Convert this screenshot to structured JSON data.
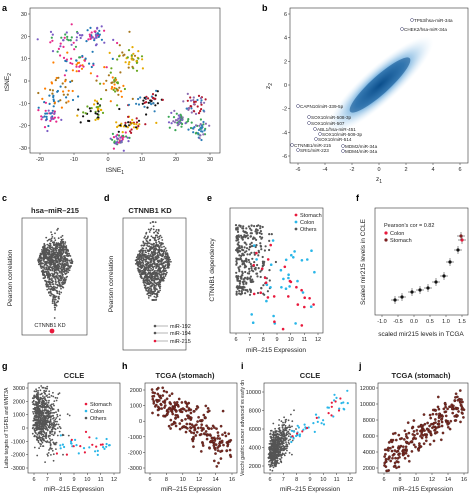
{
  "panels": {
    "a": {
      "label": "a",
      "xlabel": "tSNE",
      "xlabel_sub": "1",
      "ylabel": "tSNE",
      "ylabel_sub": "2",
      "xticks": [
        "-20",
        "-10",
        "0",
        "10",
        "20",
        "30"
      ],
      "yticks": [
        "-30",
        "-20",
        "-10",
        "0",
        "10",
        "20",
        "30"
      ]
    },
    "b": {
      "label": "b",
      "xlabel": "z",
      "xlabel_sub": "1",
      "ylabel": "z",
      "ylabel_sub": "2",
      "xticks": [
        "-6",
        "-4",
        "-2",
        "0",
        "2",
        "4",
        "6"
      ],
      "yticks": [
        "-6",
        "-4",
        "-2",
        "0",
        "2",
        "4",
        "6"
      ],
      "annotations": [
        "TP53/hsa-miR-34a",
        "CHEK2/hsa-miR-34a",
        "CAPN10/miR-339-5p",
        "SOX10/miR-508-3p",
        "SOX10/miR-507",
        "ABL1/hsa-miR-451",
        "SOX10/miR-509-3p",
        "SOX10/miR-514",
        "CTNNB1/miR-215",
        "MDM2/miR-34a",
        "SRI1/miR-223",
        "MDM4/miR-34a"
      ]
    },
    "c": {
      "label": "c",
      "title": "hsa–miR–215",
      "ylabel": "Pearson correlation",
      "point_label": "CTNNB1 KD"
    },
    "d": {
      "label": "d",
      "title": "CTNNB1 KD",
      "ylabel": "Pearson correlation",
      "mirs": [
        "miR-192",
        "miR-194",
        "miR-215"
      ]
    },
    "e": {
      "label": "e",
      "xlabel": "miR–215 Expression",
      "ylabel": "CTNNB1 dependency",
      "xticks": [
        "6",
        "7",
        "8",
        "9",
        "10",
        "11",
        "12"
      ],
      "legend": [
        "Stomach",
        "Colon",
        "Others"
      ]
    },
    "f": {
      "label": "f",
      "xlabel": "scaled mir215 levels in TCGA",
      "ylabel": "Scaled mir215 levels in CCLE",
      "xticks": [
        "-1.0",
        "-0.5",
        "0.0",
        "0.5",
        "1.0",
        "1.5"
      ],
      "annotation": "Pearson's cor = 0.82",
      "legend": [
        "Colon",
        "Stomach"
      ]
    },
    "g": {
      "label": "g",
      "title": "CCLE",
      "xlabel": "miR–215 Expression",
      "ylabel": "Latbe targets of TGFB1 and WNT3A",
      "xticks": [
        "6",
        "7",
        "8",
        "9",
        "10",
        "11",
        "12"
      ],
      "yticks": [
        "-3000",
        "-2000",
        "-1000",
        "0",
        "1000",
        "2000",
        "3000"
      ],
      "legend": [
        "Stomach",
        "Colon",
        "Others"
      ]
    },
    "h": {
      "label": "h",
      "title": "TCGA (stomach)",
      "xlabel": "miR–215 Expression",
      "xticks": [
        "6",
        "8",
        "10",
        "12",
        "14",
        "16"
      ],
      "yticks": [
        "-3000",
        "-2000",
        "-1000",
        "0",
        "1000",
        "2000"
      ]
    },
    "i": {
      "label": "i",
      "title": "CCLE",
      "xlabel": "miR–215 Expression",
      "ylabel": "Vecchi gastric cancer advanced vs early dn",
      "xticks": [
        "6",
        "7",
        "8",
        "9",
        "10",
        "11",
        "12"
      ],
      "yticks": [
        "2000",
        "4000",
        "6000",
        "8000",
        "10000"
      ]
    },
    "j": {
      "label": "j",
      "title": "TCGA (stomach)",
      "xlabel": "miR–215 Expression",
      "xticks": [
        "6",
        "8",
        "10",
        "12",
        "14",
        "16"
      ],
      "yticks": [
        "2000",
        "4000",
        "6000",
        "8000",
        "10000",
        "12000"
      ]
    }
  },
  "colors": {
    "stomach": "#e8193c",
    "colon": "#29b6e8",
    "others": "#555555",
    "tcga": "#7a2a22",
    "density": "#1f78b4",
    "annot": "#333366"
  }
}
